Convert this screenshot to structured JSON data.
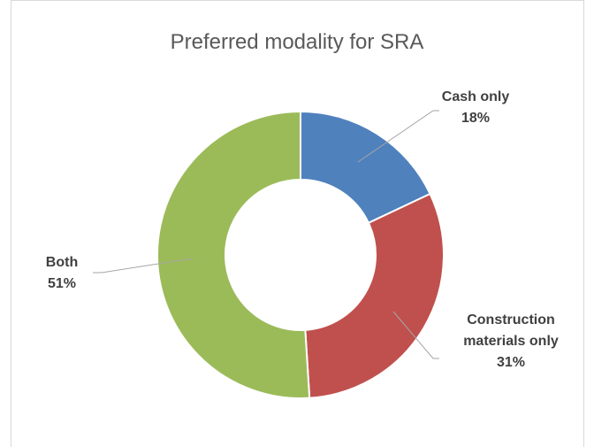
{
  "chart_data": {
    "type": "pie",
    "title": "Preferred modality for SRA",
    "categories": [
      "Cash only",
      "Construction materials only",
      "Both"
    ],
    "values": [
      18,
      31,
      51
    ],
    "value_labels": [
      "18%",
      "31%",
      "51%"
    ],
    "colors": [
      "#4f81bd",
      "#c0504d",
      "#9bbb59"
    ]
  }
}
